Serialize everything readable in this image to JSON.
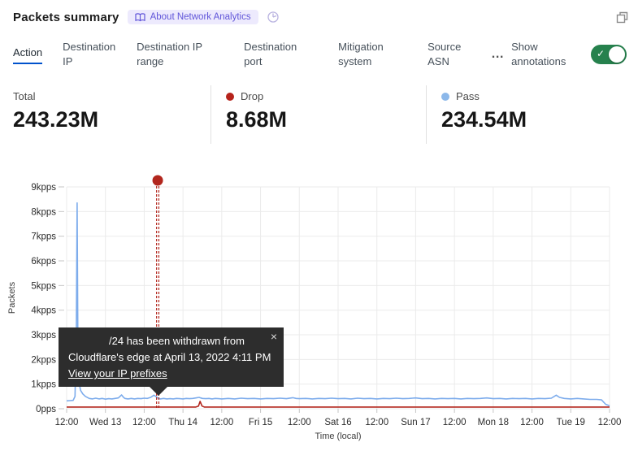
{
  "header": {
    "title": "Packets summary",
    "about_badge": "About Network Analytics",
    "history_icon": "history-icon",
    "popout_icon": "popout-icon"
  },
  "tabs": {
    "items": [
      {
        "label": "Action",
        "active": true,
        "key": "action"
      },
      {
        "label": "Destination IP",
        "active": false,
        "key": "dest-ip"
      },
      {
        "label": "Destination IP range",
        "active": false,
        "key": "dest-ip-range"
      },
      {
        "label": "Destination port",
        "active": false,
        "key": "dest-port"
      },
      {
        "label": "Mitigation system",
        "active": false,
        "key": "mitigation"
      },
      {
        "label": "Source ASN",
        "active": false,
        "key": "source-asn"
      }
    ],
    "more_label": "…",
    "show_annotations_label": "Show annotations",
    "toggle_on": true,
    "toggle_check": "✓"
  },
  "stats": [
    {
      "label": "Total",
      "value": "243.23M",
      "dot_color": null
    },
    {
      "label": "Drop",
      "value": "8.68M",
      "dot_color": "#b6231b"
    },
    {
      "label": "Pass",
      "value": "234.54M",
      "dot_color": "#8cb8ea"
    }
  ],
  "tooltip": {
    "line1": "/24 has been withdrawn from",
    "line2": "Cloudflare's edge at April 13, 2022 4:11 PM",
    "link": "View your IP prefixes",
    "close": "×"
  },
  "chart_data": {
    "type": "line",
    "ylabel": "Packets",
    "xlabel": "Time (local)",
    "unit": "kpps",
    "ylim": [
      0,
      9
    ],
    "y_ticks": [
      "0pps",
      "1kpps",
      "2kpps",
      "3kpps",
      "4kpps",
      "5kpps",
      "6kpps",
      "7kpps",
      "8kpps",
      "9kpps"
    ],
    "x_ticks": [
      "12:00",
      "Wed 13",
      "12:00",
      "Thu 14",
      "12:00",
      "Fri 15",
      "12:00",
      "Sat 16",
      "12:00",
      "Sun 17",
      "12:00",
      "Mon 18",
      "12:00",
      "Tue 19",
      "12:00"
    ],
    "x_tick_interval_hours": 12,
    "x_domain_hours": [
      0,
      168
    ],
    "grid": true,
    "legend_position": "stats-row",
    "series": [
      {
        "name": "Pass",
        "color": "#7dacec",
        "points": [
          [
            0,
            0.32
          ],
          [
            1,
            0.33
          ],
          [
            2,
            0.34
          ],
          [
            2.6,
            0.5
          ],
          [
            3.0,
            3.0
          ],
          [
            3.25,
            8.35
          ],
          [
            3.5,
            2.2
          ],
          [
            3.8,
            1.1
          ],
          [
            4.3,
            0.75
          ],
          [
            5,
            0.6
          ],
          [
            5.8,
            0.5
          ],
          [
            7,
            0.42
          ],
          [
            8,
            0.4
          ],
          [
            9,
            0.43
          ],
          [
            10,
            0.4
          ],
          [
            11,
            0.42
          ],
          [
            12,
            0.39
          ],
          [
            13,
            0.41
          ],
          [
            14,
            0.4
          ],
          [
            15,
            0.42
          ],
          [
            16,
            0.44
          ],
          [
            17,
            0.56
          ],
          [
            17.6,
            0.46
          ],
          [
            18,
            0.42
          ],
          [
            19,
            0.4
          ],
          [
            20,
            0.42
          ],
          [
            21,
            0.4
          ],
          [
            22,
            0.42
          ],
          [
            23,
            0.41
          ],
          [
            24,
            0.43
          ],
          [
            25,
            0.42
          ],
          [
            26,
            0.46
          ],
          [
            27,
            0.55
          ],
          [
            27.6,
            0.5
          ],
          [
            28.2,
            0.44
          ],
          [
            29,
            0.4
          ],
          [
            30,
            0.42
          ],
          [
            31,
            0.4
          ],
          [
            32,
            0.41
          ],
          [
            33,
            0.4
          ],
          [
            34,
            0.42
          ],
          [
            35,
            0.41
          ],
          [
            36,
            0.4
          ],
          [
            37,
            0.42
          ],
          [
            38,
            0.41
          ],
          [
            39,
            0.42
          ],
          [
            40,
            0.44
          ],
          [
            41,
            0.46
          ],
          [
            41.5,
            0.44
          ],
          [
            42,
            0.42
          ],
          [
            43,
            0.41
          ],
          [
            44,
            0.42
          ],
          [
            45,
            0.4
          ],
          [
            46,
            0.42
          ],
          [
            47,
            0.41
          ],
          [
            48,
            0.4
          ],
          [
            50,
            0.42
          ],
          [
            52,
            0.4
          ],
          [
            54,
            0.43
          ],
          [
            56,
            0.41
          ],
          [
            58,
            0.42
          ],
          [
            60,
            0.4
          ],
          [
            62,
            0.42
          ],
          [
            64,
            0.41
          ],
          [
            66,
            0.43
          ],
          [
            68,
            0.41
          ],
          [
            70,
            0.45
          ],
          [
            71,
            0.42
          ],
          [
            72,
            0.41
          ],
          [
            74,
            0.42
          ],
          [
            76,
            0.4
          ],
          [
            78,
            0.42
          ],
          [
            80,
            0.41
          ],
          [
            82,
            0.43
          ],
          [
            84,
            0.41
          ],
          [
            86,
            0.42
          ],
          [
            88,
            0.4
          ],
          [
            90,
            0.43
          ],
          [
            92,
            0.41
          ],
          [
            94,
            0.42
          ],
          [
            96,
            0.4
          ],
          [
            98,
            0.42
          ],
          [
            100,
            0.41
          ],
          [
            102,
            0.43
          ],
          [
            104,
            0.41
          ],
          [
            106,
            0.42
          ],
          [
            108,
            0.44
          ],
          [
            110,
            0.41
          ],
          [
            112,
            0.42
          ],
          [
            114,
            0.4
          ],
          [
            116,
            0.42
          ],
          [
            118,
            0.41
          ],
          [
            120,
            0.42
          ],
          [
            122,
            0.4
          ],
          [
            124,
            0.42
          ],
          [
            126,
            0.41
          ],
          [
            128,
            0.42
          ],
          [
            130,
            0.44
          ],
          [
            132,
            0.41
          ],
          [
            134,
            0.42
          ],
          [
            136,
            0.4
          ],
          [
            138,
            0.42
          ],
          [
            140,
            0.41
          ],
          [
            142,
            0.42
          ],
          [
            144,
            0.4
          ],
          [
            146,
            0.42
          ],
          [
            148,
            0.41
          ],
          [
            150,
            0.43
          ],
          [
            151.5,
            0.55
          ],
          [
            152.5,
            0.46
          ],
          [
            154,
            0.42
          ],
          [
            156,
            0.4
          ],
          [
            158,
            0.42
          ],
          [
            160,
            0.4
          ],
          [
            162,
            0.38
          ],
          [
            164,
            0.38
          ],
          [
            165.5,
            0.36
          ],
          [
            166.8,
            0.18
          ],
          [
            168,
            0.12
          ]
        ]
      },
      {
        "name": "Drop",
        "color": "#b2261d",
        "points": [
          [
            0,
            0.07
          ],
          [
            6,
            0.07
          ],
          [
            12,
            0.07
          ],
          [
            18,
            0.07
          ],
          [
            24,
            0.07
          ],
          [
            30,
            0.07
          ],
          [
            36,
            0.07
          ],
          [
            40,
            0.07
          ],
          [
            40.8,
            0.11
          ],
          [
            41.3,
            0.3
          ],
          [
            41.9,
            0.11
          ],
          [
            42.6,
            0.07
          ],
          [
            48,
            0.07
          ],
          [
            54,
            0.07
          ],
          [
            60,
            0.07
          ],
          [
            66,
            0.07
          ],
          [
            72,
            0.07
          ],
          [
            78,
            0.07
          ],
          [
            84,
            0.07
          ],
          [
            90,
            0.07
          ],
          [
            96,
            0.07
          ],
          [
            102,
            0.07
          ],
          [
            108,
            0.07
          ],
          [
            114,
            0.07
          ],
          [
            120,
            0.07
          ],
          [
            126,
            0.07
          ],
          [
            132,
            0.07
          ],
          [
            138,
            0.07
          ],
          [
            144,
            0.07
          ],
          [
            150,
            0.07
          ],
          [
            156,
            0.07
          ],
          [
            162,
            0.07
          ],
          [
            168,
            0.07
          ]
        ]
      }
    ],
    "annotation": {
      "t_hours": 28.18,
      "color": "#b2261d",
      "label": "/24 has been withdrawn from Cloudflare's edge at April 13, 2022 4:11 PM"
    }
  }
}
